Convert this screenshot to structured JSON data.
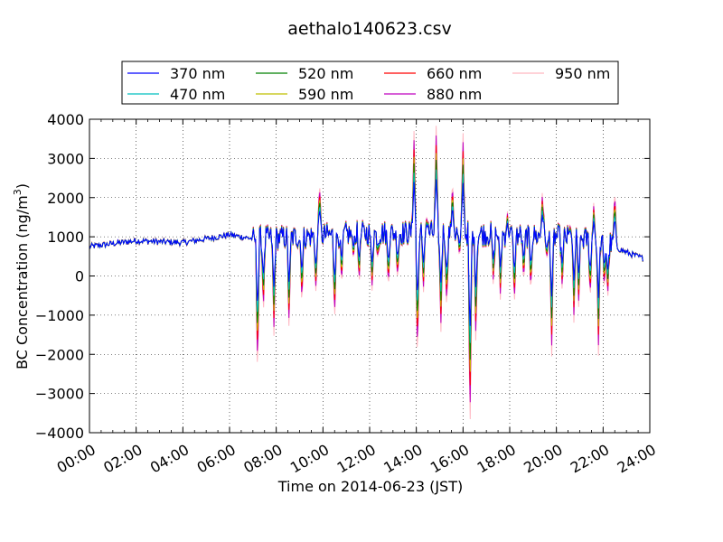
{
  "chart_data": {
    "type": "line",
    "title": "aethalo140623.csv",
    "xlabel": "Time on 2014-06-23 (JST)",
    "ylabel": "BC Concentration (ng/m",
    "ylabel_sup": "3",
    "ylabel_tail": ")",
    "xlim": [
      0,
      24
    ],
    "ylim": [
      -4000,
      4000
    ],
    "grid": true,
    "legend_position": "top",
    "x_tick_labels": [
      "00:00",
      "02:00",
      "04:00",
      "06:00",
      "08:00",
      "10:00",
      "12:00",
      "14:00",
      "16:00",
      "18:00",
      "20:00",
      "22:00",
      "24:00"
    ],
    "y_tick_labels": [
      "4000",
      "3000",
      "2000",
      "1000",
      "0",
      "−1000",
      "−2000",
      "−3000",
      "−4000"
    ],
    "x_ticks_hours": [
      0,
      2,
      4,
      6,
      8,
      10,
      12,
      14,
      16,
      18,
      20,
      22,
      24
    ],
    "y_ticks": [
      4000,
      3000,
      2000,
      1000,
      0,
      -1000,
      -2000,
      -3000,
      -4000
    ],
    "series": [
      {
        "name": "370 nm",
        "color": "#0000ff",
        "amp": 0.55
      },
      {
        "name": "470 nm",
        "color": "#00bfbf",
        "amp": 0.65
      },
      {
        "name": "520 nm",
        "color": "#008000",
        "amp": 0.75
      },
      {
        "name": "590 nm",
        "color": "#bfbf00",
        "amp": 0.82
      },
      {
        "name": "660 nm",
        "color": "#ff0000",
        "amp": 0.9
      },
      {
        "name": "880 nm",
        "color": "#bf00bf",
        "amp": 1.0
      },
      {
        "name": "950 nm",
        "color": "#ffb6c1",
        "amp": 1.1
      }
    ],
    "baseline_points": [
      [
        0,
        750
      ],
      [
        2,
        900
      ],
      [
        4,
        850
      ],
      [
        6,
        1050
      ],
      [
        7,
        950
      ],
      [
        9,
        1000
      ],
      [
        12,
        1100
      ],
      [
        16,
        1100
      ],
      [
        20,
        1000
      ],
      [
        22,
        900
      ],
      [
        23,
        600
      ],
      [
        23.7,
        450
      ]
    ],
    "events": [
      [
        7.2,
        -2300
      ],
      [
        7.45,
        -800
      ],
      [
        7.9,
        -1300
      ],
      [
        8.55,
        -1200
      ],
      [
        9.1,
        -600
      ],
      [
        9.7,
        -300
      ],
      [
        9.85,
        2300
      ],
      [
        10.5,
        -1000
      ],
      [
        10.8,
        -200
      ],
      [
        11.3,
        500
      ],
      [
        11.55,
        -100
      ],
      [
        12.1,
        -300
      ],
      [
        12.35,
        500
      ],
      [
        12.8,
        -200
      ],
      [
        13.2,
        0
      ],
      [
        13.9,
        3500
      ],
      [
        14.05,
        -2000
      ],
      [
        14.3,
        -400
      ],
      [
        14.45,
        1500
      ],
      [
        14.85,
        3600
      ],
      [
        15.05,
        -1300
      ],
      [
        15.3,
        -700
      ],
      [
        15.55,
        2300
      ],
      [
        15.85,
        500
      ],
      [
        16.0,
        3500
      ],
      [
        16.3,
        -3700
      ],
      [
        16.55,
        -1500
      ],
      [
        17.3,
        -200
      ],
      [
        17.6,
        -500
      ],
      [
        17.9,
        1600
      ],
      [
        18.2,
        -600
      ],
      [
        18.6,
        -100
      ],
      [
        18.9,
        -300
      ],
      [
        19.4,
        2100
      ],
      [
        19.6,
        500
      ],
      [
        19.8,
        -1800
      ],
      [
        20.25,
        -300
      ],
      [
        20.6,
        1300
      ],
      [
        20.75,
        -1000
      ],
      [
        20.95,
        -700
      ],
      [
        21.45,
        -500
      ],
      [
        21.6,
        1800
      ],
      [
        21.8,
        -1800
      ],
      [
        22.05,
        -300
      ],
      [
        22.2,
        -500
      ],
      [
        22.5,
        2100
      ]
    ]
  },
  "colors": {
    "axis": "#000000",
    "grid": "#000000",
    "background": "#ffffff"
  }
}
